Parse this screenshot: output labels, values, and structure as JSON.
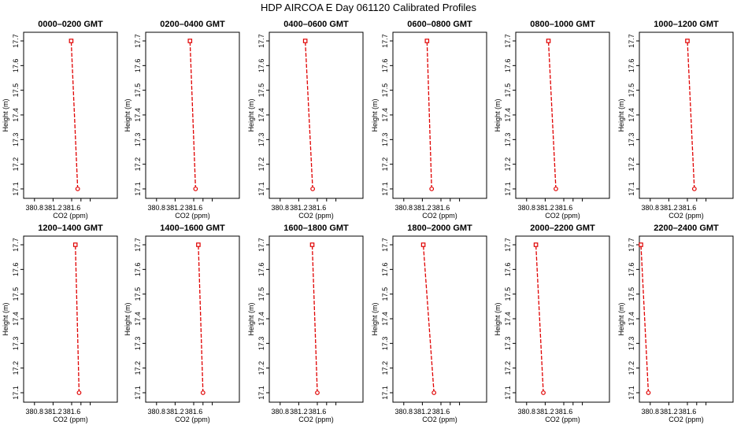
{
  "figure_title": "HDP AIRCOA E  Day 061120  Calibrated Profiles",
  "chart_data": [
    {
      "type": "line",
      "title": "0000–0200 GMT",
      "xlabel": "CO2 (ppm)",
      "ylabel": "Height (m)",
      "xlim": [
        380.6,
        391.9
      ],
      "ylim": [
        17.08,
        17.72
      ],
      "xticks": [
        "380.8",
        "381.2",
        "381.6"
      ],
      "yticks": [
        "17.1",
        "17.2",
        "17.3",
        "17.4",
        "17.5",
        "17.6",
        "17.7"
      ],
      "x": [
        381.73,
        381.59
      ],
      "y": [
        17.1,
        17.7
      ],
      "line_color": "#e00000",
      "grid": false
    },
    {
      "type": "line",
      "title": "0200–0400 GMT",
      "xlabel": "CO2 (ppm)",
      "ylabel": "Height (m)",
      "xlim": [
        380.6,
        391.9
      ],
      "ylim": [
        17.08,
        17.72
      ],
      "xticks": [
        "380.8",
        "381.2",
        "381.6"
      ],
      "yticks": [
        "17.1",
        "17.2",
        "17.3",
        "17.4",
        "17.5",
        "17.6",
        "17.7"
      ],
      "x": [
        381.64,
        381.52
      ],
      "y": [
        17.1,
        17.7
      ],
      "line_color": "#e00000",
      "grid": false
    },
    {
      "type": "line",
      "title": "0400–0600 GMT",
      "xlabel": "CO2 (ppm)",
      "ylabel": "Height (m)",
      "xlim": [
        380.6,
        391.9
      ],
      "ylim": [
        17.08,
        17.72
      ],
      "xticks": [
        "380.8",
        "381.2",
        "381.6"
      ],
      "yticks": [
        "17.1",
        "17.2",
        "17.3",
        "17.4",
        "17.5",
        "17.6",
        "17.7"
      ],
      "x": [
        381.5,
        381.34
      ],
      "y": [
        17.1,
        17.7
      ],
      "line_color": "#e00000",
      "grid": false
    },
    {
      "type": "line",
      "title": "0600–0800 GMT",
      "xlabel": "CO2 (ppm)",
      "ylabel": "Height (m)",
      "xlim": [
        380.6,
        391.9
      ],
      "ylim": [
        17.08,
        17.72
      ],
      "xticks": [
        "380.8",
        "381.2",
        "381.6"
      ],
      "yticks": [
        "17.1",
        "17.2",
        "17.3",
        "17.4",
        "17.5",
        "17.6",
        "17.7"
      ],
      "x": [
        381.4,
        381.3
      ],
      "y": [
        17.1,
        17.7
      ],
      "line_color": "#e00000",
      "grid": false
    },
    {
      "type": "line",
      "title": "0800–1000 GMT",
      "xlabel": "CO2 (ppm)",
      "ylabel": "Height (m)",
      "xlim": [
        380.6,
        391.9
      ],
      "ylim": [
        17.08,
        17.72
      ],
      "xticks": [
        "380.8",
        "381.2",
        "381.6"
      ],
      "yticks": [
        "17.1",
        "17.2",
        "17.3",
        "17.4",
        "17.5",
        "17.6",
        "17.7"
      ],
      "x": [
        381.43,
        381.27
      ],
      "y": [
        17.1,
        17.7
      ],
      "line_color": "#e00000",
      "grid": false
    },
    {
      "type": "line",
      "title": "1000–1200 GMT",
      "xlabel": "CO2 (ppm)",
      "ylabel": "Height (m)",
      "xlim": [
        380.6,
        391.9
      ],
      "ylim": [
        17.08,
        17.72
      ],
      "xticks": [
        "380.8",
        "381.2",
        "381.6"
      ],
      "yticks": [
        "17.1",
        "17.2",
        "17.3",
        "17.4",
        "17.5",
        "17.6",
        "17.7"
      ],
      "x": [
        381.75,
        381.6
      ],
      "y": [
        17.1,
        17.7
      ],
      "line_color": "#e00000",
      "grid": false
    },
    {
      "type": "line",
      "title": "1200–1400 GMT",
      "xlabel": "CO2 (ppm)",
      "ylabel": "Height (m)",
      "xlim": [
        380.6,
        391.9
      ],
      "ylim": [
        17.08,
        17.72
      ],
      "xticks": [
        "380.8",
        "381.2",
        "381.6"
      ],
      "yticks": [
        "17.1",
        "17.2",
        "17.3",
        "17.4",
        "17.5",
        "17.6",
        "17.7"
      ],
      "x": [
        381.76,
        381.68
      ],
      "y": [
        17.1,
        17.7
      ],
      "line_color": "#e00000",
      "grid": false
    },
    {
      "type": "line",
      "title": "1400–1600 GMT",
      "xlabel": "CO2 (ppm)",
      "ylabel": "Height (m)",
      "xlim": [
        380.6,
        391.9
      ],
      "ylim": [
        17.08,
        17.72
      ],
      "xticks": [
        "380.8",
        "381.2",
        "381.6"
      ],
      "yticks": [
        "17.1",
        "17.2",
        "17.3",
        "17.4",
        "17.5",
        "17.6",
        "17.7"
      ],
      "x": [
        381.8,
        381.7
      ],
      "y": [
        17.1,
        17.7
      ],
      "line_color": "#e00000",
      "grid": false
    },
    {
      "type": "line",
      "title": "1600–1800 GMT",
      "xlabel": "CO2 (ppm)",
      "ylabel": "Height (m)",
      "xlim": [
        380.6,
        391.9
      ],
      "ylim": [
        17.08,
        17.72
      ],
      "xticks": [
        "380.8",
        "381.2",
        "381.6"
      ],
      "yticks": [
        "17.1",
        "17.2",
        "17.3",
        "17.4",
        "17.5",
        "17.6",
        "17.7"
      ],
      "x": [
        381.6,
        381.49
      ],
      "y": [
        17.1,
        17.7
      ],
      "line_color": "#e00000",
      "grid": false
    },
    {
      "type": "line",
      "title": "1800–2000 GMT",
      "xlabel": "CO2 (ppm)",
      "ylabel": "Height (m)",
      "xlim": [
        380.6,
        391.9
      ],
      "ylim": [
        17.08,
        17.72
      ],
      "xticks": [
        "380.8",
        "381.2",
        "381.6"
      ],
      "yticks": [
        "17.1",
        "17.2",
        "17.3",
        "17.4",
        "17.5",
        "17.6",
        "17.7"
      ],
      "x": [
        381.45,
        381.22
      ],
      "y": [
        17.1,
        17.7
      ],
      "line_color": "#e00000",
      "grid": false
    },
    {
      "type": "line",
      "title": "2000–2200 GMT",
      "xlabel": "CO2 (ppm)",
      "ylabel": "Height (m)",
      "xlim": [
        380.6,
        391.9
      ],
      "ylim": [
        17.08,
        17.72
      ],
      "xticks": [
        "380.8",
        "381.2",
        "381.6"
      ],
      "yticks": [
        "17.1",
        "17.2",
        "17.3",
        "17.4",
        "17.5",
        "17.6",
        "17.7"
      ],
      "x": [
        381.16,
        381.0
      ],
      "y": [
        17.1,
        17.7
      ],
      "line_color": "#e00000",
      "grid": false
    },
    {
      "type": "line",
      "title": "2200–2400 GMT",
      "xlabel": "CO2 (ppm)",
      "ylabel": "Height (m)",
      "xlim": [
        380.6,
        391.9
      ],
      "ylim": [
        17.08,
        17.72
      ],
      "xticks": [
        "380.8",
        "381.2",
        "381.6"
      ],
      "yticks": [
        "17.1",
        "17.2",
        "17.3",
        "17.4",
        "17.5",
        "17.6",
        "17.7"
      ],
      "x": [
        380.76,
        380.6
      ],
      "y": [
        17.1,
        17.7
      ],
      "line_color": "#e00000",
      "grid": false
    }
  ]
}
